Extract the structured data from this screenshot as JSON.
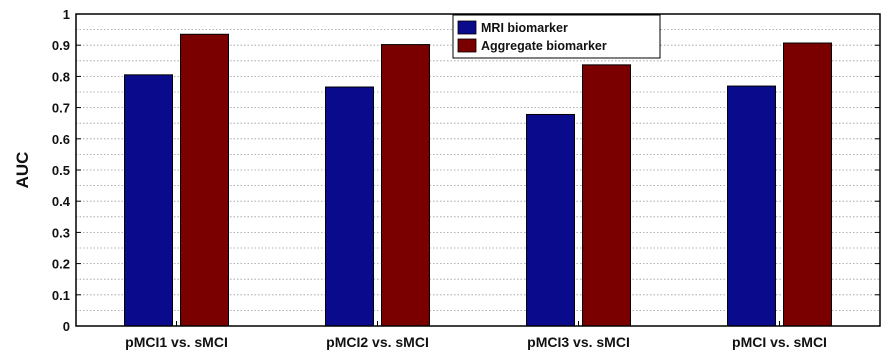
{
  "chart_data": {
    "type": "bar",
    "categories": [
      "pMCI1 vs. sMCI",
      "pMCI2 vs. sMCI",
      "pMCI3 vs. sMCI",
      "pMCI vs. sMCI"
    ],
    "series": [
      {
        "name": "MRI biomarker",
        "values": [
          0.805,
          0.766,
          0.678,
          0.769
        ],
        "color": "#0a0a8c"
      },
      {
        "name": "Aggregate biomarker",
        "values": [
          0.935,
          0.902,
          0.837,
          0.907
        ],
        "color": "#7a0000"
      }
    ],
    "title": "",
    "xlabel": "",
    "ylabel": "AUC",
    "ylim": [
      0,
      1
    ],
    "yticks": [
      "0",
      "0.1",
      "0.2",
      "0.3",
      "0.4",
      "0.5",
      "0.6",
      "0.7",
      "0.8",
      "0.9",
      "1"
    ],
    "grid": true,
    "legend_position": "top-center"
  }
}
